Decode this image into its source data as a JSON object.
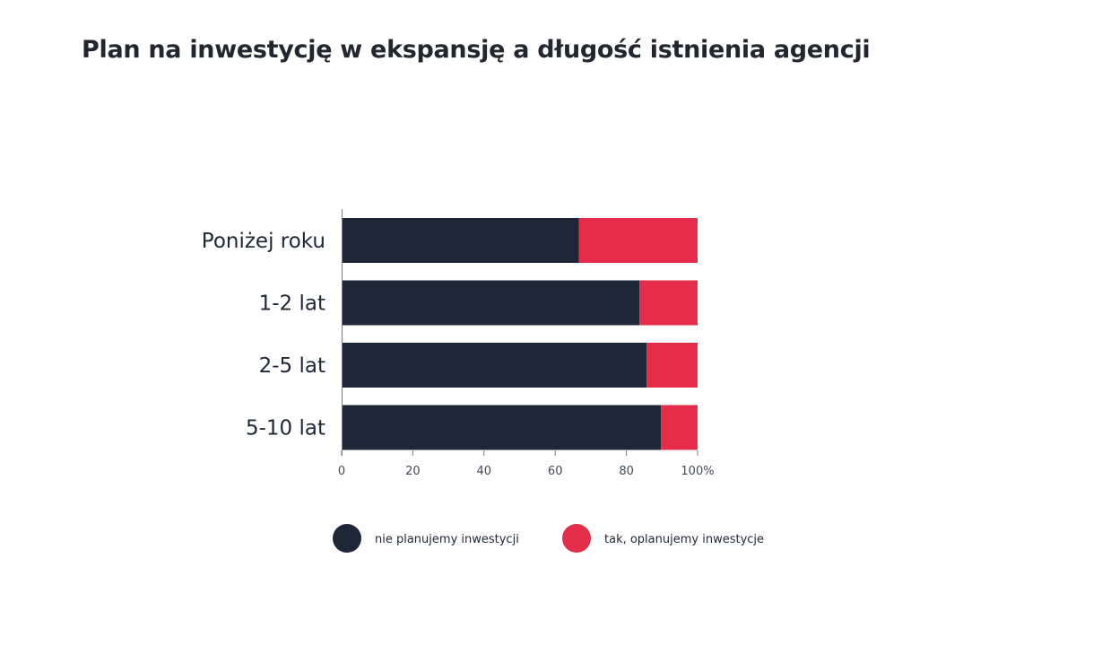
{
  "chart_data": {
    "type": "bar",
    "orientation": "horizontal",
    "stacked": true,
    "title": "Plan na inwestycję w ekspansję a długość istnienia agencji",
    "categories": [
      "Poniżej roku",
      "1-2 lat",
      "2-5 lat",
      "5-10 lat"
    ],
    "series": [
      {
        "name": "nie planujemy inwestycji",
        "color": "#1e2735",
        "values": [
          66.7,
          83.7,
          85.7,
          89.7
        ]
      },
      {
        "name": "tak, oplanujemy inwestycje",
        "color": "#e42d49",
        "values": [
          33.3,
          16.3,
          14.3,
          10.3
        ]
      }
    ],
    "xticks": [
      "0",
      "20",
      "40",
      "60",
      "80",
      "100%"
    ],
    "xlim": [
      0,
      100
    ],
    "grid": false,
    "legend_position": "bottom"
  }
}
